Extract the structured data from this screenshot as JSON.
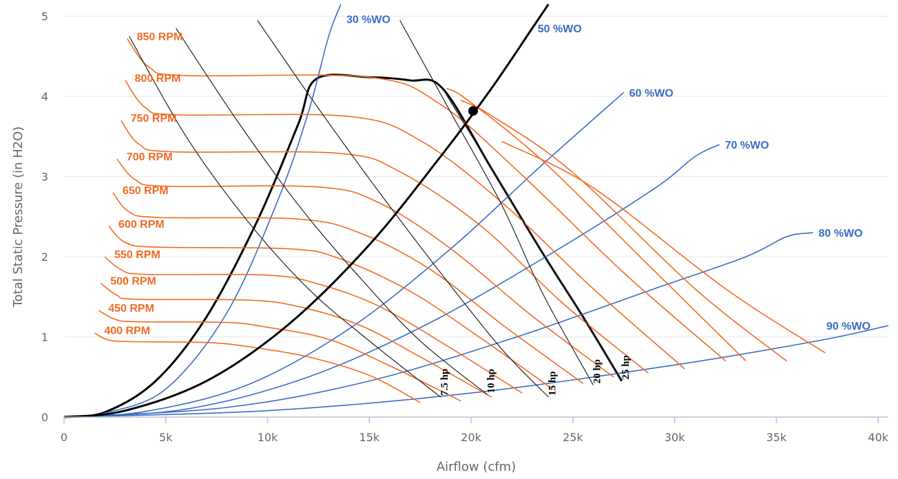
{
  "chart_data": {
    "type": "line",
    "xlabel": "Airflow (cfm)",
    "ylabel": "Total Static Pressure (in H2O)",
    "xlim": [
      0,
      40500
    ],
    "ylim": [
      0,
      5.1
    ],
    "x_ticks": [
      {
        "value": 0,
        "label": "0"
      },
      {
        "value": 5000,
        "label": "5k"
      },
      {
        "value": 10000,
        "label": "10k"
      },
      {
        "value": 15000,
        "label": "15k"
      },
      {
        "value": 20000,
        "label": "20k"
      },
      {
        "value": 25000,
        "label": "25k"
      },
      {
        "value": 30000,
        "label": "30k"
      },
      {
        "value": 35000,
        "label": "35k"
      },
      {
        "value": 40000,
        "label": "40k"
      }
    ],
    "y_ticks": [
      {
        "value": 0,
        "label": "0"
      },
      {
        "value": 1,
        "label": "1"
      },
      {
        "value": 2,
        "label": "2"
      },
      {
        "value": 3,
        "label": "3"
      },
      {
        "value": 4,
        "label": "4"
      },
      {
        "value": 5,
        "label": "5"
      }
    ],
    "grid": "horizontal",
    "colors": {
      "rpm": "#f26a22",
      "damper": "#3b6bc4",
      "power": "#222222",
      "boundary": "#000000"
    },
    "rpm_curves": [
      {
        "label": "400 RPM",
        "rpm": 400,
        "points": [
          [
            1500,
            1.05
          ],
          [
            2200,
            0.96
          ],
          [
            3500,
            0.94
          ],
          [
            7000,
            0.93
          ],
          [
            9000,
            0.88
          ],
          [
            12000,
            0.75
          ],
          [
            15000,
            0.52
          ],
          [
            17500,
            0.18
          ]
        ]
      },
      {
        "label": "450 RPM",
        "rpm": 450,
        "points": [
          [
            1700,
            1.33
          ],
          [
            2500,
            1.22
          ],
          [
            3500,
            1.19
          ],
          [
            8000,
            1.18
          ],
          [
            10000,
            1.12
          ],
          [
            13000,
            0.97
          ],
          [
            16000,
            0.64
          ],
          [
            19500,
            0.2
          ]
        ]
      },
      {
        "label": "500 RPM",
        "rpm": 500,
        "points": [
          [
            1800,
            1.67
          ],
          [
            2600,
            1.52
          ],
          [
            3500,
            1.47
          ],
          [
            9000,
            1.46
          ],
          [
            11500,
            1.38
          ],
          [
            14500,
            1.15
          ],
          [
            17500,
            0.75
          ],
          [
            21000,
            0.25
          ]
        ]
      },
      {
        "label": "550 RPM",
        "rpm": 550,
        "points": [
          [
            2000,
            2.0
          ],
          [
            2800,
            1.84
          ],
          [
            4000,
            1.78
          ],
          [
            10000,
            1.77
          ],
          [
            12500,
            1.66
          ],
          [
            15500,
            1.38
          ],
          [
            19000,
            0.86
          ],
          [
            22500,
            0.3
          ]
        ]
      },
      {
        "label": "600 RPM",
        "rpm": 600,
        "points": [
          [
            2200,
            2.38
          ],
          [
            3000,
            2.18
          ],
          [
            4500,
            2.12
          ],
          [
            11000,
            2.1
          ],
          [
            13500,
            1.98
          ],
          [
            17000,
            1.57
          ],
          [
            20500,
            0.98
          ],
          [
            24000,
            0.35
          ]
        ]
      },
      {
        "label": "650 RPM",
        "rpm": 650,
        "points": [
          [
            2400,
            2.8
          ],
          [
            3200,
            2.56
          ],
          [
            4700,
            2.49
          ],
          [
            11500,
            2.47
          ],
          [
            14500,
            2.3
          ],
          [
            18000,
            1.84
          ],
          [
            21700,
            1.12
          ],
          [
            25500,
            0.42
          ]
        ]
      },
      {
        "label": "700 RPM",
        "rpm": 700,
        "points": [
          [
            2600,
            3.22
          ],
          [
            3500,
            2.96
          ],
          [
            5000,
            2.88
          ],
          [
            12500,
            2.87
          ],
          [
            15500,
            2.67
          ],
          [
            19000,
            2.1
          ],
          [
            23000,
            1.26
          ],
          [
            27000,
            0.5
          ]
        ]
      },
      {
        "label": "750 RPM",
        "rpm": 750,
        "points": [
          [
            2800,
            3.7
          ],
          [
            3700,
            3.4
          ],
          [
            5300,
            3.31
          ],
          [
            13500,
            3.29
          ],
          [
            16500,
            3.06
          ],
          [
            20500,
            2.38
          ],
          [
            24500,
            1.42
          ],
          [
            28700,
            0.55
          ]
        ]
      },
      {
        "label": "800 RPM",
        "rpm": 800,
        "points": [
          [
            3000,
            4.2
          ],
          [
            4000,
            3.86
          ],
          [
            5600,
            3.77
          ],
          [
            14000,
            3.75
          ],
          [
            17500,
            3.45
          ],
          [
            21500,
            2.68
          ],
          [
            26000,
            1.6
          ],
          [
            30500,
            0.6
          ]
        ]
      },
      {
        "label": "850 RPM",
        "rpm": 850,
        "points": [
          [
            3100,
            4.72
          ],
          [
            4200,
            4.36
          ],
          [
            6000,
            4.26
          ],
          [
            15000,
            4.24
          ],
          [
            18500,
            3.9
          ],
          [
            22500,
            3.02
          ],
          [
            27500,
            1.8
          ],
          [
            32500,
            0.7
          ]
        ]
      },
      {
        "label": "",
        "rpm": 900,
        "points": [
          [
            18800,
            4.1
          ],
          [
            19800,
            3.96
          ],
          [
            23500,
            3.2
          ],
          [
            28500,
            1.95
          ],
          [
            33500,
            0.7
          ]
        ]
      },
      {
        "label": "",
        "rpm": 950,
        "points": [
          [
            19500,
            3.95
          ],
          [
            21000,
            3.76
          ],
          [
            25000,
            3.05
          ],
          [
            31000,
            1.6
          ],
          [
            35500,
            0.7
          ]
        ]
      },
      {
        "label": "",
        "rpm": 1000,
        "points": [
          [
            21500,
            3.44
          ],
          [
            26000,
            2.86
          ],
          [
            32500,
            1.6
          ],
          [
            37400,
            0.8
          ]
        ]
      }
    ],
    "damper_curves": [
      {
        "label": "30 %WO",
        "points": [
          [
            0,
            0
          ],
          [
            2000,
            0.05
          ],
          [
            5000,
            0.35
          ],
          [
            8000,
            1.3
          ],
          [
            10500,
            2.7
          ],
          [
            12000,
            3.8
          ],
          [
            13000,
            4.75
          ],
          [
            13600,
            5.15
          ]
        ]
      },
      {
        "label": "50 %WO",
        "points": [
          [
            0,
            0
          ],
          [
            3000,
            0.08
          ],
          [
            7000,
            0.45
          ],
          [
            11000,
            1.15
          ],
          [
            15000,
            2.15
          ],
          [
            18500,
            3.25
          ],
          [
            21000,
            4.1
          ],
          [
            23000,
            4.85
          ]
        ]
      },
      {
        "label": "60 %WO",
        "points": [
          [
            0,
            0
          ],
          [
            4000,
            0.07
          ],
          [
            9000,
            0.4
          ],
          [
            14000,
            1.1
          ],
          [
            19000,
            2.1
          ],
          [
            23500,
            3.15
          ],
          [
            27500,
            4.05
          ]
        ]
      },
      {
        "label": "70 %WO",
        "points": [
          [
            0,
            0
          ],
          [
            6000,
            0.1
          ],
          [
            12000,
            0.5
          ],
          [
            18000,
            1.18
          ],
          [
            24000,
            2.05
          ],
          [
            29000,
            2.85
          ],
          [
            31000,
            3.25
          ],
          [
            32200,
            3.4
          ]
        ]
      },
      {
        "label": "80 %WO",
        "points": [
          [
            0,
            0
          ],
          [
            8000,
            0.12
          ],
          [
            15000,
            0.45
          ],
          [
            22000,
            0.98
          ],
          [
            29000,
            1.6
          ],
          [
            33500,
            2.0
          ],
          [
            35500,
            2.25
          ],
          [
            36800,
            2.3
          ]
        ]
      },
      {
        "label": "90 %WO",
        "points": [
          [
            0,
            0
          ],
          [
            10000,
            0.08
          ],
          [
            20000,
            0.3
          ],
          [
            30000,
            0.65
          ],
          [
            37000,
            0.95
          ],
          [
            40500,
            1.14
          ]
        ]
      }
    ],
    "power_curves": [
      {
        "label": "7.5 hp",
        "points": [
          [
            3200,
            4.75
          ],
          [
            6000,
            3.5
          ],
          [
            9000,
            2.45
          ],
          [
            12000,
            1.6
          ],
          [
            15000,
            0.95
          ],
          [
            18500,
            0.25
          ]
        ]
      },
      {
        "label": "10 hp",
        "points": [
          [
            5500,
            4.85
          ],
          [
            8500,
            3.7
          ],
          [
            11500,
            2.65
          ],
          [
            14500,
            1.75
          ],
          [
            17500,
            0.95
          ],
          [
            20800,
            0.28
          ]
        ]
      },
      {
        "label": "15 hp",
        "points": [
          [
            9500,
            4.95
          ],
          [
            12500,
            3.85
          ],
          [
            15500,
            2.8
          ],
          [
            18500,
            1.8
          ],
          [
            21500,
            0.85
          ],
          [
            23800,
            0.25
          ]
        ]
      },
      {
        "label": "20 hp",
        "points": [
          [
            16500,
            4.95
          ],
          [
            19000,
            3.8
          ],
          [
            21500,
            2.65
          ],
          [
            23500,
            1.55
          ],
          [
            26000,
            0.4
          ]
        ]
      },
      {
        "label": "25 hp",
        "points": [
          [
            18600,
            4.1
          ],
          [
            21000,
            3.1
          ],
          [
            23500,
            2.05
          ],
          [
            25500,
            1.25
          ],
          [
            27400,
            0.45
          ]
        ]
      }
    ],
    "envelope": {
      "points": [
        [
          0,
          0
        ],
        [
          2000,
          0.06
        ],
        [
          4500,
          0.45
        ],
        [
          7000,
          1.25
        ],
        [
          9500,
          2.45
        ],
        [
          11500,
          3.65
        ],
        [
          12400,
          4.22
        ],
        [
          15000,
          4.24
        ],
        [
          17000,
          4.2
        ],
        [
          18600,
          4.1
        ],
        [
          21000,
          3.1
        ],
        [
          23500,
          2.05
        ],
        [
          25500,
          1.25
        ],
        [
          27400,
          0.45
        ]
      ]
    },
    "system_curve": {
      "points": [
        [
          0,
          0
        ],
        [
          3000,
          0.08
        ],
        [
          7000,
          0.45
        ],
        [
          11000,
          1.15
        ],
        [
          15000,
          2.15
        ],
        [
          18500,
          3.25
        ],
        [
          21000,
          4.1
        ],
        [
          23000,
          4.85
        ],
        [
          23800,
          5.15
        ]
      ]
    },
    "operating_point": {
      "x": 20100,
      "y": 3.82
    }
  }
}
